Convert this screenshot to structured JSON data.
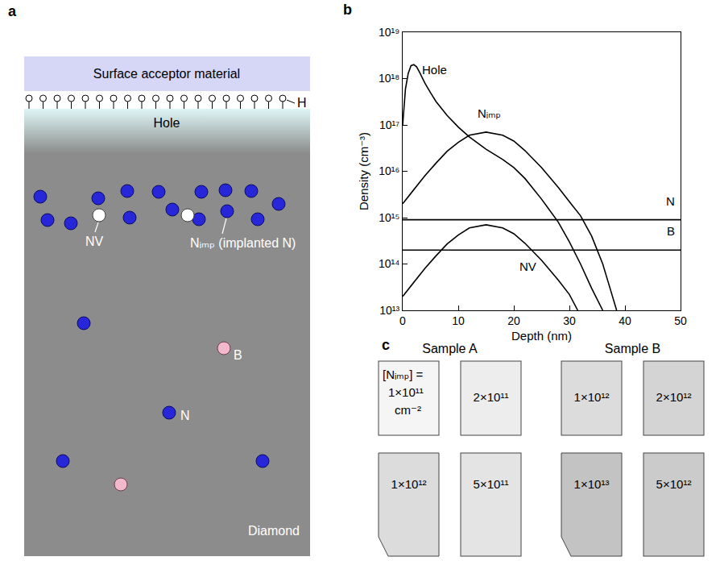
{
  "panel_a": {
    "label": "a",
    "top_layer": "Surface acceptor material",
    "termination": "H",
    "hole_layer": "Hole",
    "nv_label": "NV",
    "nimp_label": "Nᵢₘₚ (implanted N)",
    "b_label": "B",
    "n_label": "N",
    "bulk_label": "Diamond"
  },
  "chart_data": {
    "type": "line",
    "label": "b",
    "xlabel": "Depth (nm)",
    "ylabel": "Density (cm⁻³)",
    "log": "y",
    "grid": false,
    "xlim": [
      0,
      50
    ],
    "ylim": [
      10000000000000.0,
      1e+19
    ],
    "xticks": [
      0,
      10,
      20,
      30,
      40,
      50
    ],
    "yticks": [
      {
        "value": 10000000000000.0,
        "label": "10¹³"
      },
      {
        "value": 100000000000000.0,
        "label": "10¹⁴"
      },
      {
        "value": 1000000000000000.0,
        "label": "10¹⁵"
      },
      {
        "value": 1e+16,
        "label": "10¹⁶"
      },
      {
        "value": 1e+17,
        "label": "10¹⁷"
      },
      {
        "value": 1e+18,
        "label": "10¹⁸"
      },
      {
        "value": 1e+19,
        "label": "10¹⁹"
      }
    ],
    "series": [
      {
        "name": "Hole",
        "color": "#000000",
        "x": [
          0,
          0.5,
          1,
          1.5,
          2,
          2.5,
          3,
          4,
          5,
          6,
          8,
          10,
          12,
          15,
          18,
          20,
          22,
          25,
          28,
          30,
          32,
          34,
          36
        ],
        "values": [
          1e+17,
          6e+17,
          1.3e+18,
          1.9e+18,
          2e+18,
          1.8e+18,
          1.4e+18,
          8e+17,
          5e+17,
          3.2e+17,
          1.6e+17,
          9e+16,
          5.5e+16,
          3e+16,
          1.8e+16,
          1.2e+16,
          7000000000000000.0,
          2500000000000000.0,
          800000000000000.0,
          300000000000000.0,
          100000000000000.0,
          30000000000000.0,
          10000000000000.0
        ]
      },
      {
        "name": "Nᵢₘₚ",
        "color": "#000000",
        "x": [
          0,
          2,
          4,
          6,
          8,
          10,
          12,
          15,
          18,
          20,
          22,
          25,
          28,
          30,
          32,
          34,
          36,
          37,
          38.5
        ],
        "values": [
          2000000000000000.0,
          4000000000000000.0,
          8000000000000000.0,
          1.5e+16,
          2.7e+16,
          4.2e+16,
          6e+16,
          7e+16,
          6e+16,
          4.5e+16,
          2.8e+16,
          1.2e+16,
          4500000000000000.0,
          2200000000000000.0,
          1100000000000000.0,
          400000000000000.0,
          100000000000000.0,
          40000000000000.0,
          10000000000000.0
        ]
      },
      {
        "name": "N",
        "color": "#000000",
        "x": [
          0,
          50
        ],
        "values": [
          900000000000000.0,
          900000000000000.0
        ]
      },
      {
        "name": "B",
        "color": "#000000",
        "x": [
          0,
          50
        ],
        "values": [
          200000000000000.0,
          200000000000000.0
        ]
      },
      {
        "name": "NV",
        "color": "#000000",
        "x": [
          0,
          2,
          4,
          6,
          8,
          10,
          12,
          15,
          18,
          20,
          22,
          25,
          28,
          30,
          31.5
        ],
        "values": [
          20000000000000.0,
          40000000000000.0,
          80000000000000.0,
          150000000000000.0,
          270000000000000.0,
          420000000000000.0,
          600000000000000.0,
          700000000000000.0,
          600000000000000.0,
          450000000000000.0,
          280000000000000.0,
          120000000000000.0,
          45000000000000.0,
          22000000000000.0,
          10000000000000.0
        ]
      }
    ]
  },
  "panel_c": {
    "label": "c",
    "dose_prefix": "[Nᵢₘₚ] =",
    "dose_unit": "cm⁻²",
    "samples": [
      {
        "title": "Sample A",
        "doses": [
          {
            "value": 100000000000.0,
            "label": "1×10¹¹"
          },
          {
            "value": 200000000000.0,
            "label": "2×10¹¹"
          },
          {
            "value": 1000000000000.0,
            "label": "1×10¹²"
          },
          {
            "value": 500000000000.0,
            "label": "5×10¹¹"
          }
        ]
      },
      {
        "title": "Sample B",
        "doses": [
          {
            "value": 1000000000000.0,
            "label": "1×10¹²"
          },
          {
            "value": 2000000000000.0,
            "label": "2×10¹²"
          },
          {
            "value": 10000000000000.0,
            "label": "1×10¹³"
          },
          {
            "value": 5000000000000.0,
            "label": "5×10¹²"
          }
        ]
      }
    ]
  }
}
